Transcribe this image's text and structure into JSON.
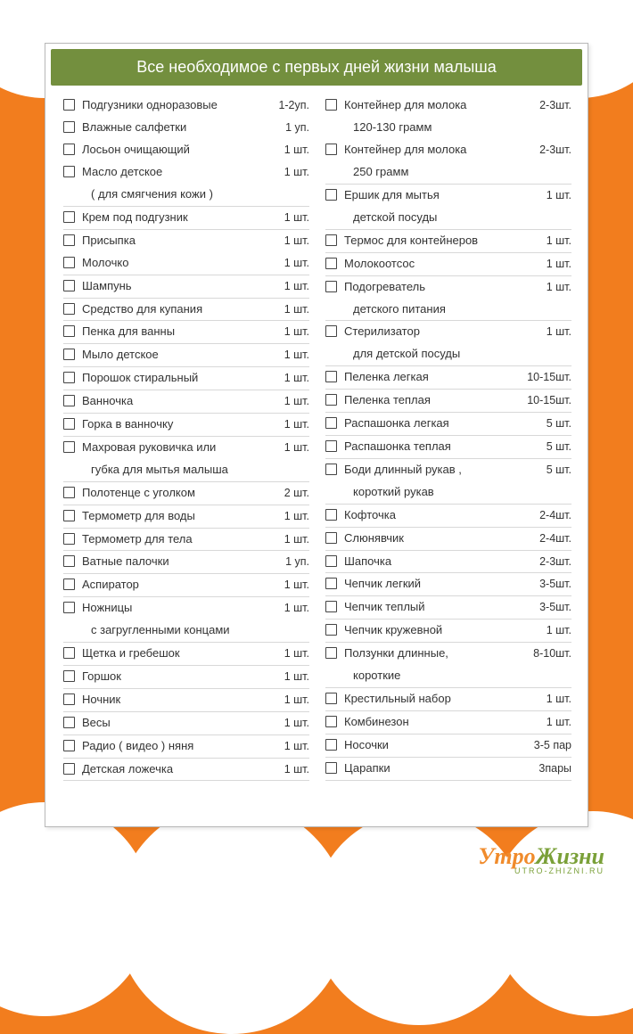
{
  "colors": {
    "page_bg": "#f27d1e",
    "card_bg": "#ffffff",
    "card_border": "#b8b8b8",
    "header_bg": "#738f3e",
    "header_fg": "#ffffff",
    "row_border": "#d8d8d8",
    "checkbox_border": "#444444",
    "text": "#333333",
    "logo_orange": "#f08b2c",
    "logo_green": "#7aa038"
  },
  "header": {
    "title": "Все необходимое с первых дней жизни малыша"
  },
  "logo": {
    "word1": "Утро",
    "word2": "Жизни",
    "subline": "UTRO-ZHIZNI.RU"
  },
  "left": [
    {
      "check": true,
      "label": "Подгузники одноразовые",
      "qty": "1-2уп.",
      "ul": false
    },
    {
      "check": true,
      "label": "Влажные салфетки",
      "qty": "1 уп.",
      "ul": false
    },
    {
      "check": true,
      "label": "Лосьон очищающий",
      "qty": "1 шт.",
      "ul": false
    },
    {
      "check": true,
      "label": "Масло детское",
      "qty": "1 шт.",
      "ul": false
    },
    {
      "check": false,
      "label": "( для смягчения кожи )",
      "qty": "",
      "ul": true,
      "indent": true
    },
    {
      "check": true,
      "label": "Крем под подгузник",
      "qty": "1 шт.",
      "ul": true
    },
    {
      "check": true,
      "label": "Присыпка",
      "qty": "1 шт.",
      "ul": false
    },
    {
      "check": true,
      "label": "Молочко",
      "qty": "1 шт.",
      "ul": true
    },
    {
      "check": true,
      "label": "Шампунь",
      "qty": "1 шт.",
      "ul": true
    },
    {
      "check": true,
      "label": "Средство для купания",
      "qty": "1 шт.",
      "ul": true
    },
    {
      "check": true,
      "label": "Пенка для ванны",
      "qty": "1 шт.",
      "ul": true
    },
    {
      "check": true,
      "label": "Мыло детское",
      "qty": "1 шт.",
      "ul": true
    },
    {
      "check": true,
      "label": "Порошок стиральный",
      "qty": "1 шт.",
      "ul": true
    },
    {
      "check": true,
      "label": "Ванночка",
      "qty": "1 шт.",
      "ul": true
    },
    {
      "check": true,
      "label": "Горка в ванночку",
      "qty": "1 шт.",
      "ul": true
    },
    {
      "check": true,
      "label": "Махровая руковичка или",
      "qty": "1 шт.",
      "ul": false
    },
    {
      "check": false,
      "label": "губка для мытья малыша",
      "qty": "",
      "ul": true,
      "indent": true
    },
    {
      "check": true,
      "label": "Полотенце с уголком",
      "qty": "2 шт.",
      "ul": true
    },
    {
      "check": true,
      "label": "Термометр для воды",
      "qty": "1 шт.",
      "ul": true
    },
    {
      "check": true,
      "label": "Термометр для тела",
      "qty": "1 шт.",
      "ul": true
    },
    {
      "check": true,
      "label": "Ватные палочки",
      "qty": "1 уп.",
      "ul": true
    },
    {
      "check": true,
      "label": "Аспиратор",
      "qty": "1 шт.",
      "ul": true
    },
    {
      "check": true,
      "label": "Ножницы",
      "qty": "1 шт.",
      "ul": false
    },
    {
      "check": false,
      "label": "с загругленными концами",
      "qty": "",
      "ul": true,
      "indent": true
    },
    {
      "check": true,
      "label": "Щетка и гребешок",
      "qty": "1 шт.",
      "ul": true
    },
    {
      "check": true,
      "label": "Горшок",
      "qty": "1 шт.",
      "ul": true
    },
    {
      "check": true,
      "label": "Ночник",
      "qty": "1 шт.",
      "ul": true
    },
    {
      "check": true,
      "label": "Весы",
      "qty": "1 шт.",
      "ul": true
    },
    {
      "check": true,
      "label": "Радио ( видео ) няня",
      "qty": "1 шт.",
      "ul": true
    },
    {
      "check": true,
      "label": "Детская  ложечка",
      "qty": "1 шт.",
      "ul": true
    }
  ],
  "right": [
    {
      "check": true,
      "label": "Контейнер для молока",
      "qty": "2-3шт.",
      "ul": false
    },
    {
      "check": false,
      "label": "120-130 грамм",
      "qty": "",
      "ul": false,
      "indent": true
    },
    {
      "check": true,
      "label": "Контейнер для молока",
      "qty": "2-3шт.",
      "ul": false
    },
    {
      "check": false,
      "label": "250 грамм",
      "qty": "",
      "ul": true,
      "indent": true
    },
    {
      "check": true,
      "label": "Ершик для мытья",
      "qty": "1 шт.",
      "ul": false
    },
    {
      "check": false,
      "label": "детской посуды",
      "qty": "",
      "ul": true,
      "indent": true
    },
    {
      "check": true,
      "label": "Термос для контейнеров",
      "qty": "1 шт.",
      "ul": true
    },
    {
      "check": true,
      "label": "Молокоотсос",
      "qty": "1 шт.",
      "ul": true
    },
    {
      "check": true,
      "label": "Подогреватель",
      "qty": "1 шт.",
      "ul": false
    },
    {
      "check": false,
      "label": "детского питания",
      "qty": "",
      "ul": true,
      "indent": true
    },
    {
      "check": true,
      "label": "Стерилизатор",
      "qty": "1 шт.",
      "ul": false
    },
    {
      "check": false,
      "label": "для детской посуды",
      "qty": "",
      "ul": true,
      "indent": true
    },
    {
      "check": true,
      "label": "Пеленка легкая",
      "qty": "10-15шт.",
      "ul": true
    },
    {
      "check": true,
      "label": "Пеленка теплая",
      "qty": "10-15шт.",
      "ul": true
    },
    {
      "check": true,
      "label": "Распашонка легкая",
      "qty": "5 шт.",
      "ul": true
    },
    {
      "check": true,
      "label": "Распашонка теплая",
      "qty": "5 шт.",
      "ul": true
    },
    {
      "check": true,
      "label": "Боди длинный рукав ,",
      "qty": "5 шт.",
      "ul": false
    },
    {
      "check": false,
      "label": "короткий рукав",
      "qty": "",
      "ul": true,
      "indent": true
    },
    {
      "check": true,
      "label": "Кофточка",
      "qty": "2-4шт.",
      "ul": true
    },
    {
      "check": true,
      "label": "Слюнявчик",
      "qty": "2-4шт.",
      "ul": true
    },
    {
      "check": true,
      "label": "Шапочка",
      "qty": "2-3шт.",
      "ul": true
    },
    {
      "check": true,
      "label": "Чепчик легкий",
      "qty": "3-5шт.",
      "ul": true
    },
    {
      "check": true,
      "label": "Чепчик теплый",
      "qty": "3-5шт.",
      "ul": true
    },
    {
      "check": true,
      "label": "Чепчик кружевной",
      "qty": "1 шт.",
      "ul": true
    },
    {
      "check": true,
      "label": "Ползунки длинные,",
      "qty": "8-10шт.",
      "ul": false
    },
    {
      "check": false,
      "label": "короткие",
      "qty": "",
      "ul": true,
      "indent": true
    },
    {
      "check": true,
      "label": "Крестильный набор",
      "qty": "1 шт.",
      "ul": true
    },
    {
      "check": true,
      "label": "Комбинезон",
      "qty": "1 шт.",
      "ul": true
    },
    {
      "check": true,
      "label": "Носочки",
      "qty": "3-5 пар",
      "ul": true
    },
    {
      "check": true,
      "label": "Царапки",
      "qty": "3пары",
      "ul": true
    }
  ]
}
